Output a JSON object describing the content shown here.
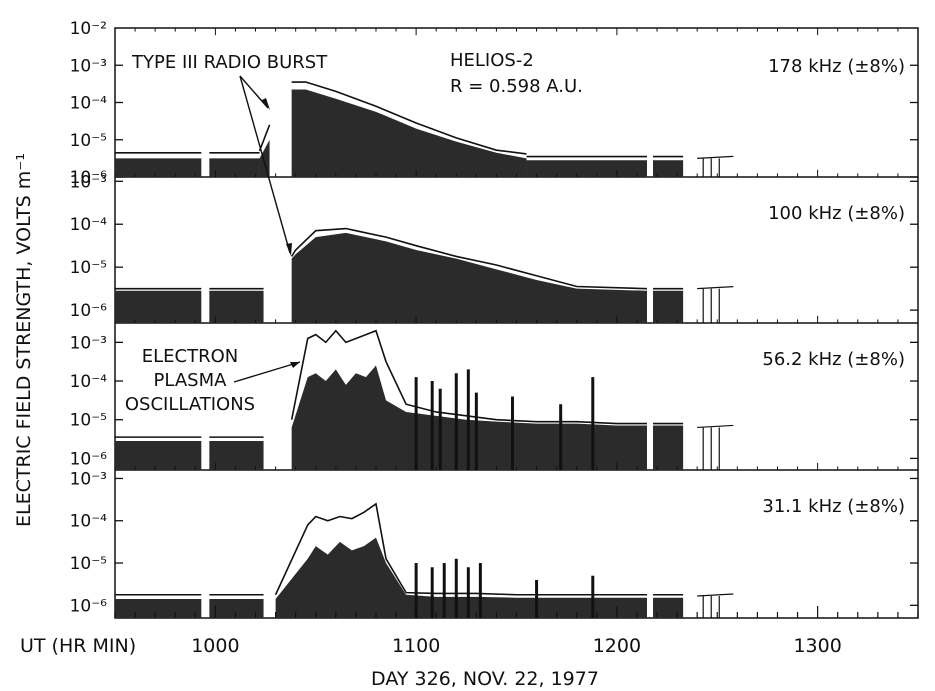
{
  "chart_data": {
    "type": "area",
    "ylabel": "ELECTRIC FIELD STRENGTH, VOLTS m⁻¹",
    "xlabel": "DAY 326,   NOV. 22, 1977",
    "x_axis_prefix": "UT (HR MIN)",
    "x_ticks": [
      "1000",
      "1100",
      "1200",
      "1300"
    ],
    "y_scale": "log",
    "top_tick_label": "10⁻²",
    "annotations": {
      "type3": "TYPE  III  RADIO BURST",
      "probe": "HELIOS-2",
      "distance": "R = 0.598 A.U.",
      "epo_line1": "ELECTRON",
      "epo_line2": "PLASMA",
      "epo_line3": "OSCILLATIONS"
    },
    "colors": {
      "fill": "#2b2b2b",
      "line": "#111111"
    },
    "panels": [
      {
        "name": "178 kHz (±8%)",
        "y_tick_labels": [
          "10⁻⁶",
          "10⁻⁵",
          "10⁻⁴",
          "10⁻³"
        ],
        "ylim_log": [
          -6,
          -2
        ],
        "segments": [
          {
            "x": [
              950,
              993
            ],
            "y": [
              -5.5,
              -5.5
            ],
            "upper": [
              -5.35,
              -5.35
            ]
          },
          {
            "x": [
              997,
              1022
            ],
            "y": [
              -5.5,
              -5.5
            ],
            "upper": [
              -5.35,
              -5.35
            ]
          },
          {
            "x": [
              1022,
              1027
            ],
            "y": [
              -5.5,
              -5.0
            ],
            "upper": [
              -5.3,
              -4.6
            ]
          },
          {
            "x": [
              1038,
              1045,
              1060,
              1080,
              1100,
              1120,
              1140,
              1155
            ],
            "y": [
              -3.65,
              -3.65,
              -3.9,
              -4.25,
              -4.7,
              -5.05,
              -5.35,
              -5.5
            ],
            "upper": [
              -3.45,
              -3.45,
              -3.7,
              -4.1,
              -4.55,
              -4.95,
              -5.28,
              -5.38
            ]
          },
          {
            "x": [
              1155,
              1215
            ],
            "y": [
              -5.55,
              -5.55
            ],
            "upper": [
              -5.45,
              -5.45
            ]
          },
          {
            "x": [
              1218,
              1233
            ],
            "y": [
              -5.55,
              -5.55
            ],
            "upper": [
              -5.45,
              -5.45
            ]
          }
        ]
      },
      {
        "name": "100 kHz (±8%)",
        "y_tick_labels": [
          "10⁻⁶",
          "10⁻⁵",
          "10⁻⁴",
          "10⁻³"
        ],
        "ylim_log": [
          -6.3,
          -2.9
        ],
        "segments": [
          {
            "x": [
              950,
              993
            ],
            "y": [
              -5.55,
              -5.55
            ],
            "upper": [
              -5.5,
              -5.5
            ]
          },
          {
            "x": [
              997,
              1024
            ],
            "y": [
              -5.55,
              -5.55
            ],
            "upper": [
              -5.5,
              -5.5
            ]
          },
          {
            "x": [
              1038,
              1040,
              1050,
              1065,
              1070,
              1085,
              1100,
              1120,
              1140,
              1160,
              1180,
              1215
            ],
            "y": [
              -4.8,
              -4.7,
              -4.3,
              -4.2,
              -4.25,
              -4.4,
              -4.6,
              -4.8,
              -5.05,
              -5.3,
              -5.5,
              -5.55
            ],
            "upper": [
              -4.75,
              -4.6,
              -4.15,
              -4.1,
              -4.15,
              -4.3,
              -4.5,
              -4.75,
              -4.95,
              -5.2,
              -5.45,
              -5.5
            ]
          },
          {
            "x": [
              1218,
              1233
            ],
            "y": [
              -5.55,
              -5.55
            ],
            "upper": [
              -5.5,
              -5.5
            ]
          }
        ]
      },
      {
        "name": "56.2 kHz (±8%)",
        "y_tick_labels": [
          "10⁻⁶",
          "10⁻⁵",
          "10⁻⁴",
          "10⁻³"
        ],
        "ylim_log": [
          -6.3,
          -2.5
        ],
        "segments": [
          {
            "x": [
              950,
              993
            ],
            "y": [
              -5.55,
              -5.55
            ],
            "upper": [
              -5.45,
              -5.45
            ]
          },
          {
            "x": [
              997,
              1024
            ],
            "y": [
              -5.55,
              -5.55
            ],
            "upper": [
              -5.45,
              -5.45
            ]
          },
          {
            "x": [
              1038,
              1046,
              1050,
              1055,
              1060,
              1065,
              1070,
              1075,
              1080,
              1085,
              1095,
              1110,
              1125,
              1140,
              1160,
              1180,
              1200,
              1215
            ],
            "y": [
              -5.2,
              -3.9,
              -3.8,
              -4.0,
              -3.7,
              -4.1,
              -3.8,
              -3.9,
              -3.6,
              -4.5,
              -4.8,
              -4.9,
              -5.0,
              -5.05,
              -5.1,
              -5.1,
              -5.15,
              -5.15
            ],
            "upper": [
              -5.0,
              -2.9,
              -2.8,
              -3.0,
              -2.7,
              -3.0,
              -2.9,
              -2.8,
              -2.7,
              -3.5,
              -4.6,
              -4.8,
              -4.9,
              -5.0,
              -5.05,
              -5.05,
              -5.1,
              -5.1
            ]
          },
          {
            "x": [
              1218,
              1233
            ],
            "y": [
              -5.15,
              -5.15
            ],
            "upper": [
              -5.1,
              -5.1
            ]
          }
        ],
        "spikes": [
          {
            "x": 1100,
            "y": -3.9
          },
          {
            "x": 1108,
            "y": -4.0
          },
          {
            "x": 1112,
            "y": -4.2
          },
          {
            "x": 1120,
            "y": -3.8
          },
          {
            "x": 1126,
            "y": -3.7
          },
          {
            "x": 1130,
            "y": -4.3
          },
          {
            "x": 1148,
            "y": -4.4
          },
          {
            "x": 1172,
            "y": -4.6
          },
          {
            "x": 1188,
            "y": -3.9
          }
        ]
      },
      {
        "name": "31.1 kHz (±8%)",
        "y_tick_labels": [
          "10⁻⁶",
          "10⁻⁵",
          "10⁻⁴",
          "10⁻³"
        ],
        "ylim_log": [
          -6.3,
          -2.8
        ],
        "segments": [
          {
            "x": [
              950,
              993
            ],
            "y": [
              -5.85,
              -5.85
            ],
            "upper": [
              -5.75,
              -5.75
            ]
          },
          {
            "x": [
              997,
              1024
            ],
            "y": [
              -5.85,
              -5.85
            ],
            "upper": [
              -5.75,
              -5.75
            ]
          },
          {
            "x": [
              1030,
              1046,
              1050,
              1056,
              1062,
              1068,
              1074,
              1080,
              1085,
              1095,
              1110,
              1130,
              1150,
              1170,
              1190,
              1215
            ],
            "y": [
              -5.85,
              -4.9,
              -4.6,
              -4.8,
              -4.5,
              -4.7,
              -4.6,
              -4.4,
              -5.0,
              -5.75,
              -5.8,
              -5.8,
              -5.82,
              -5.82,
              -5.82,
              -5.82
            ],
            "upper": [
              -5.75,
              -4.1,
              -3.9,
              -4.0,
              -3.9,
              -3.95,
              -3.8,
              -3.6,
              -4.9,
              -5.7,
              -5.72,
              -5.72,
              -5.75,
              -5.75,
              -5.75,
              -5.75
            ]
          },
          {
            "x": [
              1218,
              1233
            ],
            "y": [
              -5.82,
              -5.82
            ],
            "upper": [
              -5.75,
              -5.75
            ]
          }
        ],
        "spikes": [
          {
            "x": 1100,
            "y": -5.0
          },
          {
            "x": 1108,
            "y": -5.1
          },
          {
            "x": 1114,
            "y": -5.0
          },
          {
            "x": 1120,
            "y": -4.9
          },
          {
            "x": 1126,
            "y": -5.1
          },
          {
            "x": 1132,
            "y": -5.0
          },
          {
            "x": 1160,
            "y": -5.4
          },
          {
            "x": 1188,
            "y": -5.3
          }
        ]
      }
    ]
  }
}
